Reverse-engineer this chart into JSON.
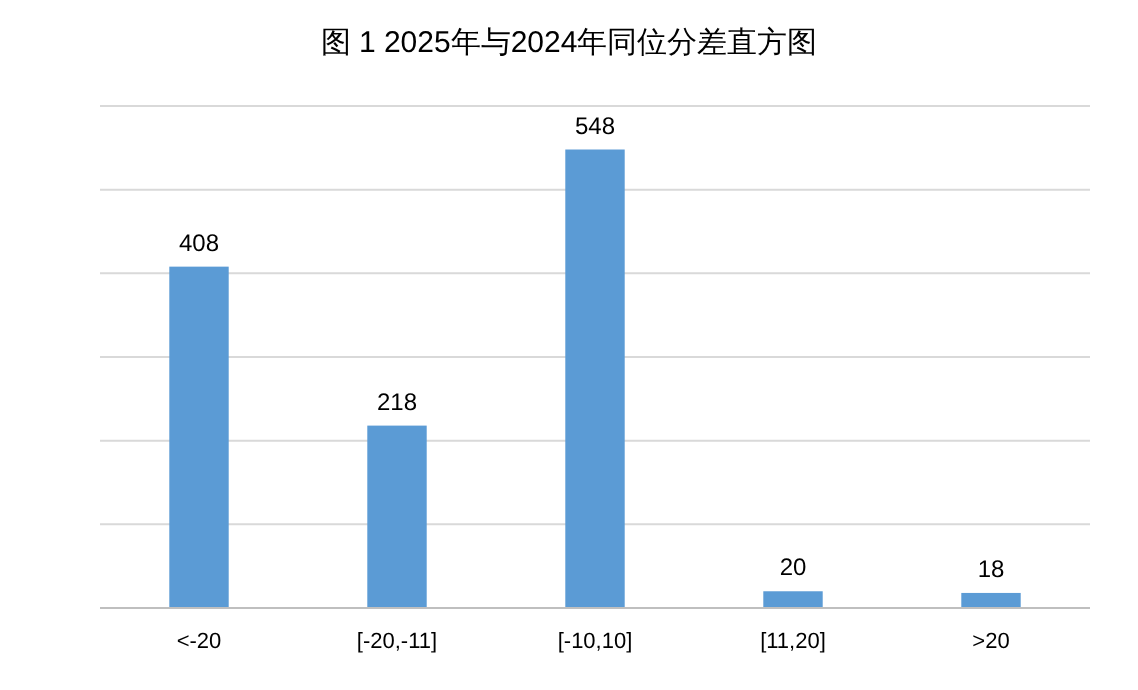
{
  "chart_data": {
    "type": "bar",
    "title": "图 1 2025年与2024年同位分差直方图",
    "categories": [
      "<-20",
      "[-20,-11]",
      "[-10,10]",
      "[11,20]",
      ">20"
    ],
    "values": [
      408,
      218,
      548,
      20,
      18
    ],
    "color": "#5b9bd5",
    "ylim": [
      0,
      600
    ],
    "yticks": [
      {
        "value": 0,
        "label": null
      },
      {
        "value": 100,
        "label": null
      },
      {
        "value": 200,
        "label": null
      },
      {
        "value": 300,
        "label": null
      },
      {
        "value": 400,
        "label": null
      },
      {
        "value": 500,
        "label": null
      },
      {
        "value": 600,
        "label": null
      }
    ],
    "grid": "y",
    "data_labels": true,
    "tick_labels": "x"
  }
}
